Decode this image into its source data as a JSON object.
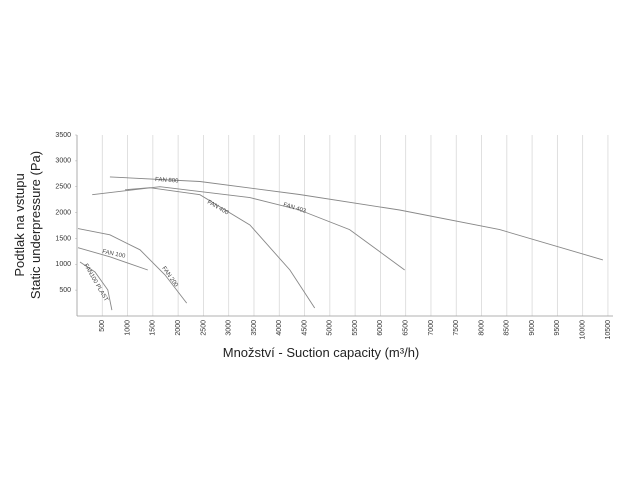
{
  "chart_data": {
    "type": "line",
    "x_label": "Množství - Suction capacity   (m³/h)",
    "y_label": [
      "Podtlak na vstupu",
      "Static underpressure (Pa)"
    ],
    "xlim": [
      0,
      10600
    ],
    "ylim": [
      0,
      3500
    ],
    "xticks": [
      500,
      1000,
      1500,
      2000,
      2500,
      3000,
      3500,
      4000,
      4500,
      5000,
      5500,
      6000,
      6500,
      7000,
      7500,
      8000,
      8500,
      9000,
      9500,
      10000,
      10500
    ],
    "yticks": [
      500,
      1000,
      1500,
      2000,
      2500,
      3000,
      3500
    ],
    "grid": "x",
    "series": [
      {
        "name": "FAN 800",
        "color": "#888888",
        "x": [
          650,
          2430,
          4400,
          6380,
          8360,
          10400
        ],
        "values": [
          2690,
          2600,
          2350,
          2050,
          1670,
          1085
        ]
      },
      {
        "name": "FAN 403",
        "color": "#888888",
        "x": [
          300,
          1640,
          3420,
          4400,
          5390,
          6480
        ],
        "values": [
          2345,
          2500,
          2290,
          2050,
          1670,
          890
        ]
      },
      {
        "name": "FAN 400",
        "color": "#888888",
        "x": [
          950,
          1440,
          2430,
          3420,
          4210,
          4700
        ],
        "values": [
          2440,
          2480,
          2345,
          1760,
          890,
          155
        ]
      },
      {
        "name": "FAN 200",
        "color": "#888888",
        "x": [
          20,
          650,
          1245,
          1740,
          2170
        ],
        "values": [
          1690,
          1570,
          1280,
          795,
          250
        ]
      },
      {
        "name": "FAN 100",
        "color": "#888888",
        "x": [
          20,
          650,
          1400
        ],
        "values": [
          1320,
          1145,
          890
        ]
      },
      {
        "name": "FAN100 PLAST",
        "color": "#888888",
        "x": [
          60,
          355,
          610,
          690
        ],
        "values": [
          1045,
          850,
          505,
          115
        ]
      }
    ]
  }
}
